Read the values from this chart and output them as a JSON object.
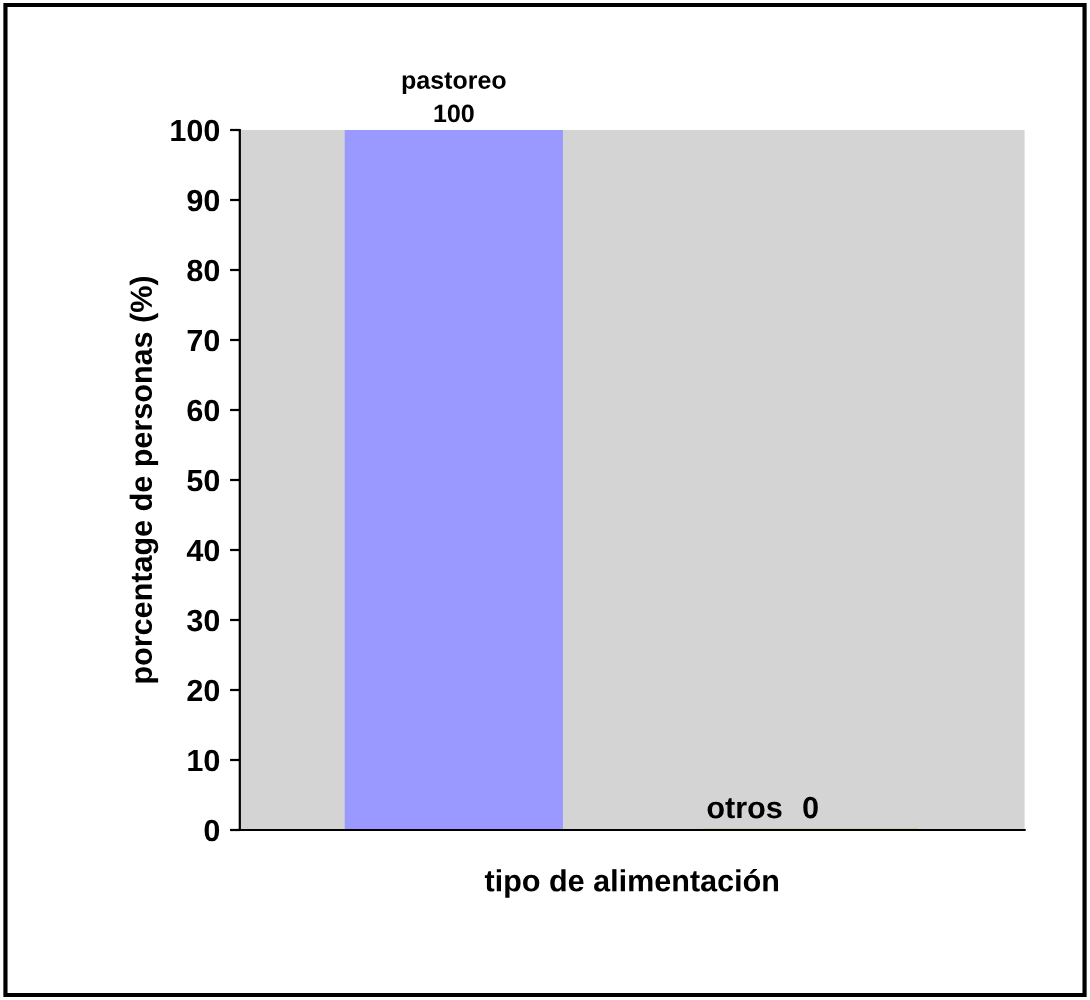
{
  "chart_data": {
    "type": "bar",
    "xlabel": "tipo de alimentación",
    "ylabel": "porcentage de personas (%)",
    "categories": [
      "pastoreo",
      "otros"
    ],
    "values": [
      100,
      0
    ],
    "colors": [
      "#9999ff",
      "#cccc99"
    ],
    "ylim": [
      0,
      100
    ],
    "yticks": [
      0,
      10,
      20,
      30,
      40,
      50,
      60,
      70,
      80,
      90,
      100
    ],
    "data_labels": true,
    "tick_labels": "y",
    "grid": false,
    "legend": false
  }
}
